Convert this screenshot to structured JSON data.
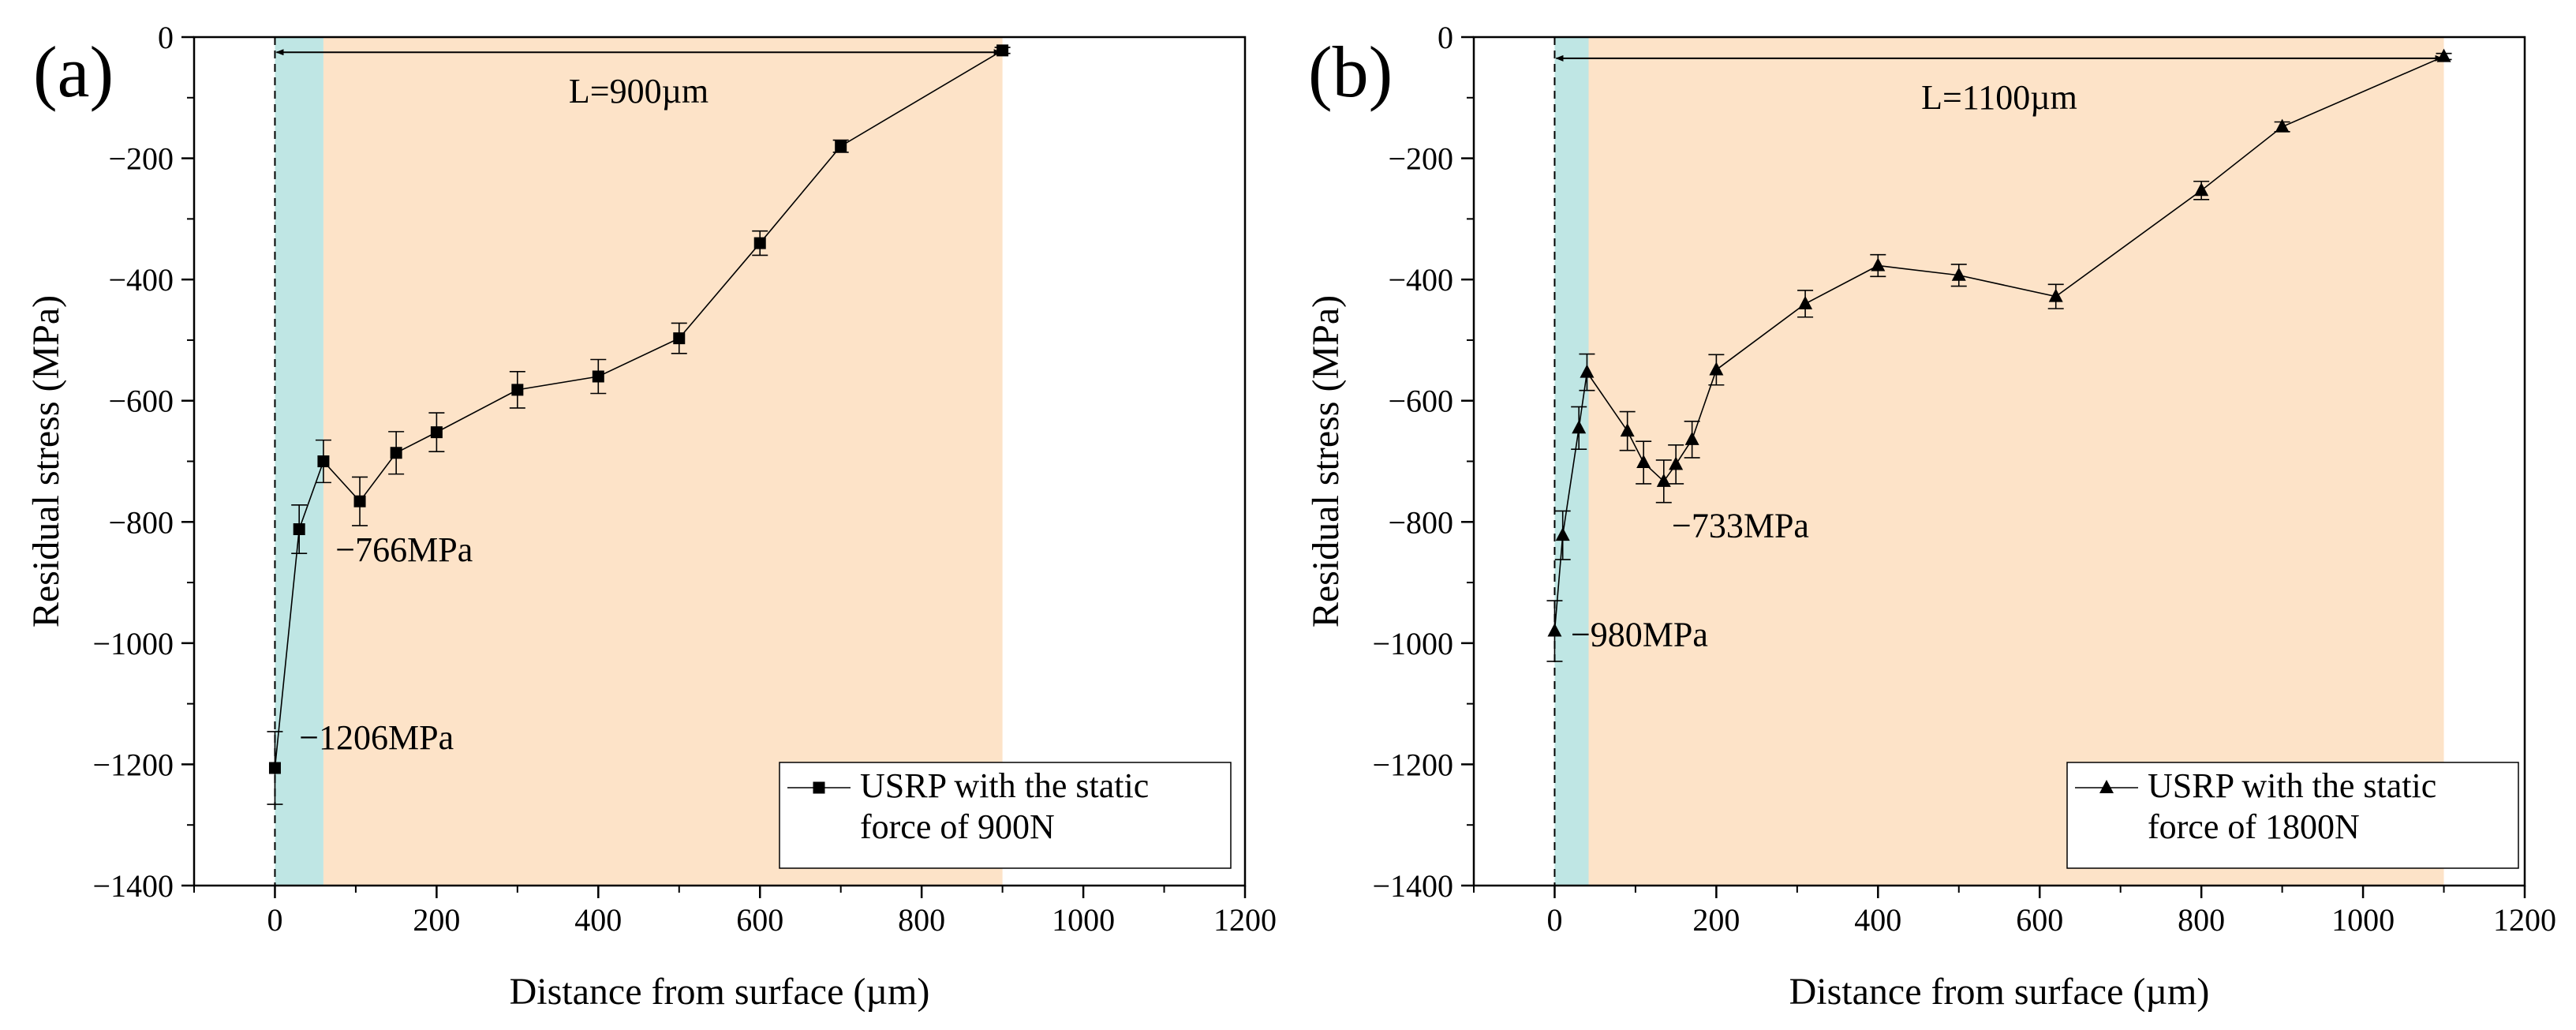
{
  "figure": {
    "panels": [
      "a",
      "b"
    ]
  },
  "chart_data": [
    {
      "type": "line",
      "panel_label": "(a)",
      "xlabel": "Distance from surface (µm)",
      "ylabel": "Residual stress (MPa)",
      "xlim": [
        -100,
        1200
      ],
      "ylim": [
        -1400,
        0
      ],
      "x_ticks": [
        0,
        200,
        400,
        600,
        800,
        1000,
        1200
      ],
      "y_ticks": [
        0,
        -200,
        -400,
        -600,
        -800,
        -1000,
        -1200,
        -1400
      ],
      "x_tick_labels": [
        "0",
        "200",
        "400",
        "600",
        "800",
        "1000",
        "1200"
      ],
      "y_tick_labels": [
        "0",
        "−200",
        "−400",
        "−600",
        "−800",
        "−1000",
        "−1200",
        "−1400"
      ],
      "grid": false,
      "legend_position": "bottom-right",
      "marker": "square",
      "shaded_regions": [
        {
          "from": 0,
          "to": 60,
          "color": "#bfe6e4"
        },
        {
          "from": 60,
          "to": 900,
          "color": "#fde3c8"
        }
      ],
      "depth_arrow": {
        "from": 0,
        "to": 900,
        "y": -25,
        "label": "L=900µm"
      },
      "series": [
        {
          "name": "USRP with the static force of 900N",
          "legend_lines": [
            "USRP with the static",
            "force of 900N"
          ],
          "x": [
            0,
            30,
            60,
            105,
            150,
            200,
            300,
            400,
            500,
            600,
            700,
            900
          ],
          "y": [
            -1206,
            -812,
            -700,
            -766,
            -686,
            -652,
            -582,
            -560,
            -497,
            -340,
            -180,
            -22
          ],
          "err": [
            60,
            40,
            35,
            40,
            35,
            32,
            30,
            28,
            25,
            20,
            10,
            5
          ]
        }
      ],
      "annotations": [
        {
          "text": "−1206MPa",
          "x": 30,
          "y": -1175
        },
        {
          "text": "−766MPa",
          "x": 75,
          "y": -865
        }
      ]
    },
    {
      "type": "line",
      "panel_label": "(b)",
      "xlabel": "Distance from surface (µm)",
      "ylabel": "Residual stress (MPa)",
      "xlim": [
        -100,
        1200
      ],
      "ylim": [
        -1400,
        0
      ],
      "x_ticks": [
        0,
        200,
        400,
        600,
        800,
        1000,
        1200
      ],
      "y_ticks": [
        0,
        -200,
        -400,
        -600,
        -800,
        -1000,
        -1200,
        -1400
      ],
      "x_tick_labels": [
        "0",
        "200",
        "400",
        "600",
        "800",
        "1000",
        "1200"
      ],
      "y_tick_labels": [
        "0",
        "−200",
        "−400",
        "−600",
        "−800",
        "−1000",
        "−1200",
        "−1400"
      ],
      "grid": false,
      "legend_position": "bottom-right",
      "marker": "triangle",
      "shaded_regions": [
        {
          "from": 0,
          "to": 42,
          "color": "#bfe6e4"
        },
        {
          "from": 42,
          "to": 1100,
          "color": "#fde3c8"
        }
      ],
      "depth_arrow": {
        "from": 0,
        "to": 1100,
        "y": -35,
        "label": "L=1100µm"
      },
      "series": [
        {
          "name": "USRP with the static force of 1800N",
          "legend_lines": [
            "USRP with the static",
            "force of 1800N"
          ],
          "x": [
            0,
            10,
            30,
            40,
            90,
            110,
            135,
            150,
            170,
            200,
            310,
            400,
            500,
            620,
            800,
            900,
            1100
          ],
          "y": [
            -980,
            -822,
            -645,
            -553,
            -650,
            -702,
            -733,
            -705,
            -664,
            -549,
            -440,
            -377,
            -393,
            -428,
            -253,
            -148,
            -32
          ],
          "err": [
            50,
            40,
            35,
            30,
            32,
            35,
            35,
            32,
            30,
            25,
            22,
            18,
            18,
            20,
            15,
            8,
            5
          ]
        }
      ],
      "annotations": [
        {
          "text": "−980MPa",
          "x": 20,
          "y": -1005
        },
        {
          "text": "−733MPa",
          "x": 145,
          "y": -825
        }
      ]
    }
  ]
}
